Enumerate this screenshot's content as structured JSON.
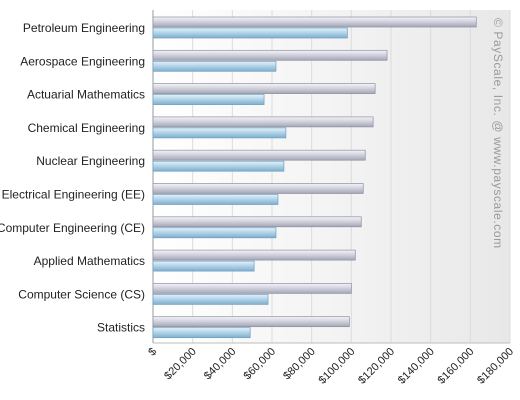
{
  "chart_data": {
    "type": "bar",
    "orientation": "horizontal",
    "categories": [
      "Petroleum Engineering",
      "Aerospace Engineering",
      "Actuarial Mathematics",
      "Chemical Engineering",
      "Nuclear Engineering",
      "Electrical Engineering (EE)",
      "Computer Engineering (CE)",
      "Applied Mathematics",
      "Computer Science (CS)",
      "Statistics"
    ],
    "series": [
      {
        "color": "#c9cad6",
        "values": [
          163000,
          118000,
          112000,
          111000,
          107000,
          106000,
          105000,
          102000,
          100000,
          99000
        ]
      },
      {
        "color": "#a9cde6",
        "values": [
          98000,
          62000,
          56000,
          67000,
          66000,
          63000,
          62000,
          51000,
          58000,
          49000
        ]
      }
    ],
    "x_ticks": [
      "$",
      "$20,000",
      "$40,000",
      "$60,000",
      "$80,000",
      "$100,000",
      "$120,000",
      "$140,000",
      "$160,000",
      "$180,000"
    ],
    "xlim": [
      0,
      180000
    ],
    "grid": true,
    "watermark": "© PayScale, Inc. @ www.payscale.com"
  }
}
